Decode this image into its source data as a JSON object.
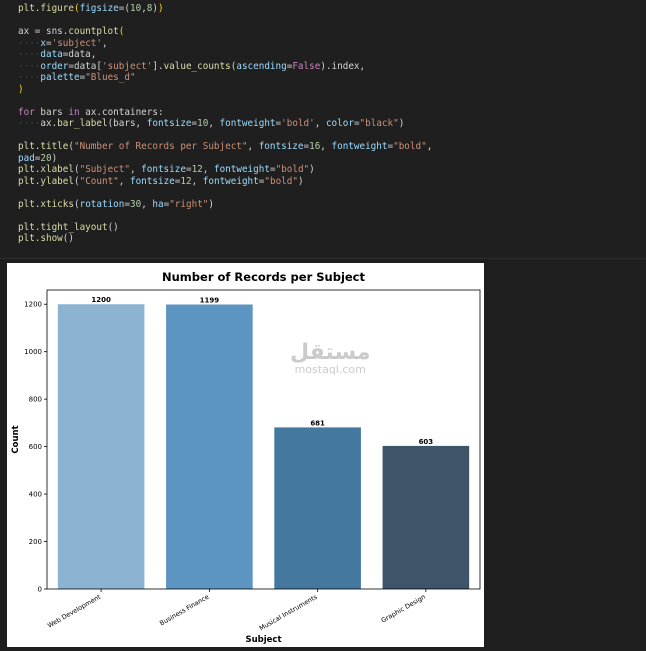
{
  "code_lines": [
    "plt.figure(figsize=(10,8))",
    "",
    "ax = sns.countplot(",
    "    x='subject',",
    "    data=data,",
    "    order=data['subject'].value_counts(ascending=False).index,",
    "    palette=\"Blues_d\"",
    ")",
    "",
    "for bars in ax.containers:",
    "    ax.bar_label(bars, fontsize=10, fontweight='bold', color=\"black\")",
    "",
    "plt.title(\"Number of Records per Subject\", fontsize=16, fontweight=\"bold\",",
    "pad=20)",
    "plt.xlabel(\"Subject\", fontsize=12, fontweight=\"bold\")",
    "plt.ylabel(\"Count\", fontsize=12, fontweight=\"bold\")",
    "",
    "plt.xticks(rotation=30, ha=\"right\")",
    "",
    "plt.tight_layout()",
    "plt.show()"
  ],
  "chart_data": {
    "type": "bar",
    "title": "Number of Records per Subject",
    "xlabel": "Subject",
    "ylabel": "Count",
    "categories": [
      "Web Development",
      "Business Finance",
      "Musical Instruments",
      "Graphic Design"
    ],
    "values": [
      1200,
      1199,
      681,
      603
    ],
    "data_labels": [
      "1200",
      "1199",
      "681",
      "603"
    ],
    "colors": [
      "#8cb3d2",
      "#5c95c1",
      "#44789f",
      "#3e5569"
    ],
    "ylim": [
      0,
      1260
    ],
    "yticks": [
      0,
      200,
      400,
      600,
      800,
      1000,
      1200
    ],
    "grid": false
  },
  "watermark": {
    "arabic": "مستقل",
    "latin": "mostaql.com"
  }
}
